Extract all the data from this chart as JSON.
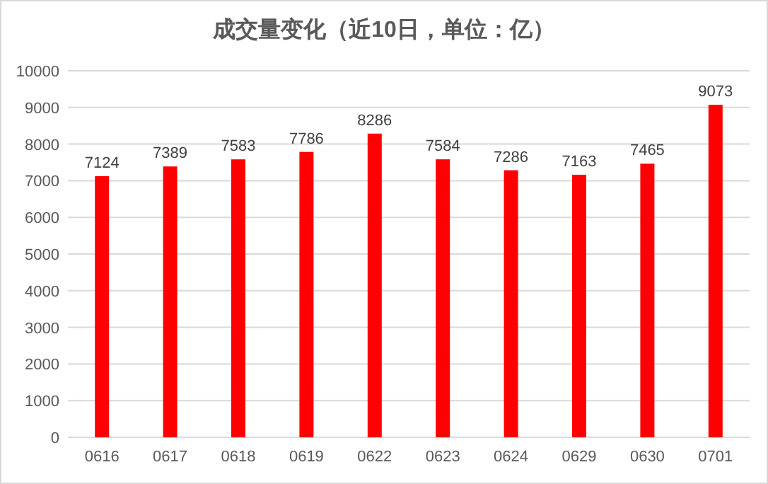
{
  "chart_data": {
    "type": "bar",
    "title": "成交量变化（近10日，单位：亿）",
    "categories": [
      "0616",
      "0617",
      "0618",
      "0619",
      "0622",
      "0623",
      "0624",
      "0629",
      "0630",
      "0701"
    ],
    "values": [
      7124,
      7389,
      7583,
      7786,
      8286,
      7584,
      7286,
      7163,
      7465,
      9073
    ],
    "color": "#ff0000",
    "ylim": [
      0,
      10000
    ],
    "yticks": [
      0,
      1000,
      2000,
      3000,
      4000,
      5000,
      6000,
      7000,
      8000,
      9000,
      10000
    ],
    "grid": "y",
    "data_labels": true
  }
}
